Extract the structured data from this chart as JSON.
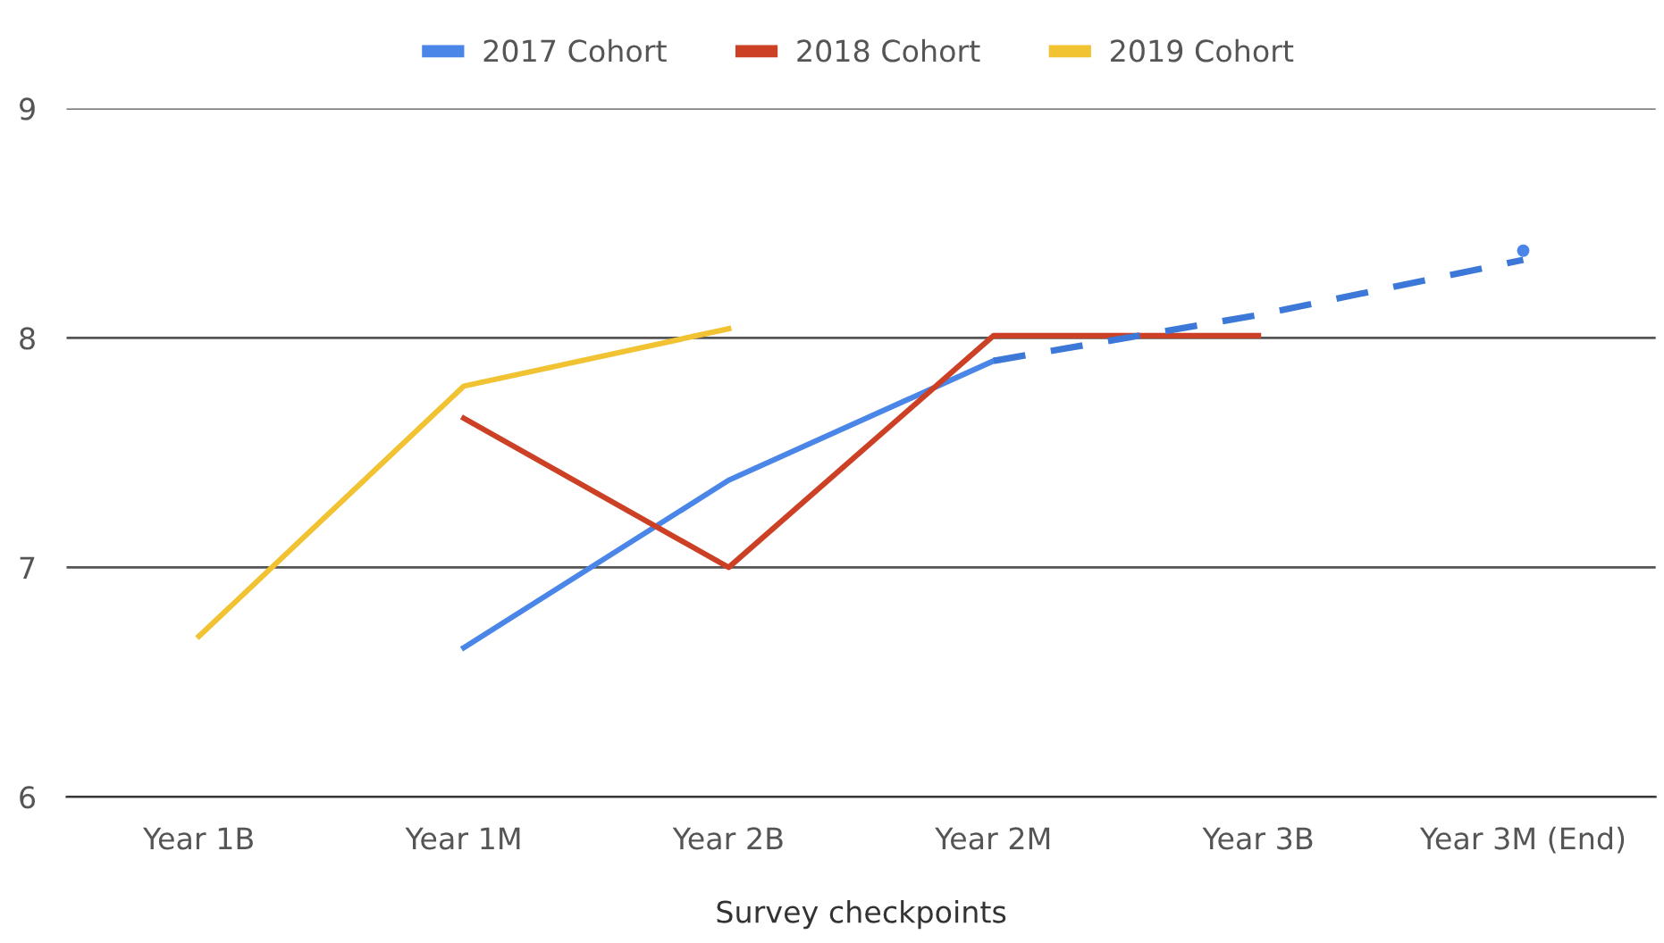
{
  "chart_data": {
    "type": "line",
    "xlabel": "Survey checkpoints",
    "categories": [
      "Year 1B",
      "Year 1M",
      "Year 2B",
      "Year 2M",
      "Year 3B",
      "Year 3M (End)"
    ],
    "series": [
      {
        "name": "2017 Cohort",
        "color": "#4a86e8",
        "values": [
          null,
          6.65,
          7.38,
          7.9,
          null,
          8.38
        ]
      },
      {
        "name": "2018 Cohort",
        "color": "#cc4125",
        "values": [
          null,
          7.65,
          7.0,
          8.01,
          8.01,
          null
        ]
      },
      {
        "name": "2019 Cohort",
        "color": "#f1c232",
        "values": [
          6.7,
          7.79,
          8.04,
          null,
          null,
          null
        ]
      },
      {
        "color": "#3c78d8",
        "line_style": "dashed",
        "values": [
          null,
          null,
          null,
          7.9,
          8.1,
          8.34
        ]
      }
    ],
    "ylim": [
      6,
      9
    ],
    "yticks": [
      6,
      7,
      8,
      9
    ],
    "grid": "y",
    "legend": "top"
  }
}
